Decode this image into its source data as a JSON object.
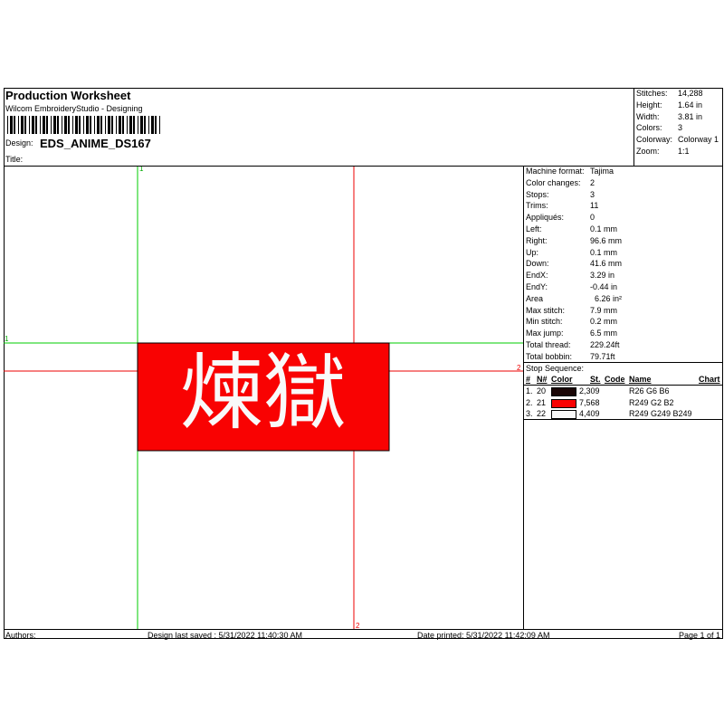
{
  "header": {
    "title": "Production Worksheet",
    "subtitle": "Wilcom EmbroideryStudio - Designing",
    "design_label": "Design:",
    "design_name": "EDS_ANIME_DS167",
    "title_label": "Title:"
  },
  "summary": [
    [
      "Stitches:",
      "14,288"
    ],
    [
      "Height:",
      "1.64 in"
    ],
    [
      "Width:",
      "3.81 in"
    ],
    [
      "Colors:",
      "3"
    ],
    [
      "Colorway:",
      "Colorway 1"
    ],
    [
      "Zoom:",
      "1:1"
    ]
  ],
  "machine": [
    [
      "Machine format:",
      "Tajima"
    ],
    [
      "Color changes:",
      "2"
    ],
    [
      "Stops:",
      "3"
    ],
    [
      "Trims:",
      "11"
    ],
    [
      "Appliqués:",
      "0"
    ],
    [
      "Left:",
      "0.1 mm"
    ],
    [
      "Right:",
      "96.6 mm"
    ],
    [
      "Up:",
      "0.1 mm"
    ],
    [
      "Down:",
      "41.6 mm"
    ],
    [
      "EndX:",
      "3.29 in"
    ],
    [
      "EndY:",
      "-0.44 in"
    ],
    [
      "Area",
      "6.26 in²"
    ],
    [
      "Max stitch:",
      "7.9 mm"
    ],
    [
      "Min stitch:",
      "0.2 mm"
    ],
    [
      "Max jump:",
      "6.5 mm"
    ],
    [
      "Total thread:",
      "229.24ft"
    ],
    [
      "Total bobbin:",
      "79.71ft"
    ]
  ],
  "stop_sequence": {
    "label": "Stop Sequence:",
    "headers": [
      "#",
      "N#",
      "Color",
      "St.",
      "Code",
      "Name",
      "Chart"
    ],
    "rows": [
      {
        "num": "1.",
        "needle": "20",
        "swatch": "#1a0606",
        "stitches": "2,309",
        "name": "R26 G6 B6"
      },
      {
        "num": "2.",
        "needle": "21",
        "swatch": "#f90202",
        "stitches": "7,568",
        "name": "R249 G2 B2"
      },
      {
        "num": "3.",
        "needle": "22",
        "swatch": "#f9f9f9",
        "stitches": "4,409",
        "name": "R249 G249 B249"
      }
    ]
  },
  "design": {
    "text": "煉獄",
    "guides": [
      "1",
      "1",
      "2",
      "2"
    ]
  },
  "footer": {
    "authors": "Authors:",
    "saved": "Design last saved : 5/31/2022 11:40:30 AM",
    "printed": "Date printed: 5/31/2022 11:42:09 AM",
    "page": "Page 1 of 1"
  }
}
